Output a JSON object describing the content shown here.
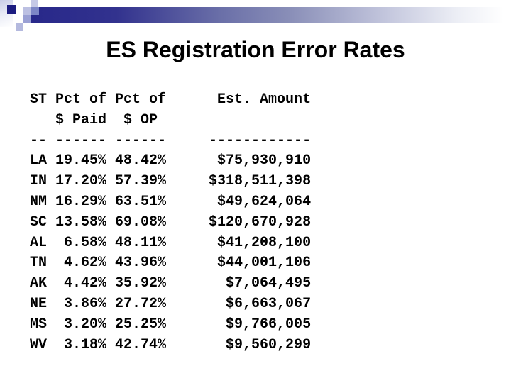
{
  "slide": {
    "title": "ES Registration Error Rates"
  },
  "table": {
    "headers": {
      "col_st": "ST",
      "col_pct_paid_line1": "Pct of",
      "col_pct_paid_line2": "$ Paid",
      "col_pct_op_line1": "Pct of",
      "col_pct_op_line2": "$ OP",
      "col_amount": "Est. Amount"
    },
    "separators": {
      "st": "--",
      "pct_paid": "------",
      "pct_op": "------",
      "amount": "------------"
    },
    "rows": [
      {
        "st": "LA",
        "pct_paid": "19.45%",
        "pct_op": "48.42%",
        "amount": "$75,930,910"
      },
      {
        "st": "IN",
        "pct_paid": "17.20%",
        "pct_op": "57.39%",
        "amount": "$318,511,398"
      },
      {
        "st": "NM",
        "pct_paid": "16.29%",
        "pct_op": "63.51%",
        "amount": "$49,624,064"
      },
      {
        "st": "SC",
        "pct_paid": "13.58%",
        "pct_op": "69.08%",
        "amount": "$120,670,928"
      },
      {
        "st": "AL",
        "pct_paid": "6.58%",
        "pct_op": "48.11%",
        "amount": "$41,208,100"
      },
      {
        "st": "TN",
        "pct_paid": "4.62%",
        "pct_op": "43.96%",
        "amount": "$44,001,106"
      },
      {
        "st": "AK",
        "pct_paid": "4.42%",
        "pct_op": "35.92%",
        "amount": "$7,064,495"
      },
      {
        "st": "NE",
        "pct_paid": "3.86%",
        "pct_op": "27.72%",
        "amount": "$6,663,067"
      },
      {
        "st": "MS",
        "pct_paid": "3.20%",
        "pct_op": "25.25%",
        "amount": "$9,766,005"
      },
      {
        "st": "WV",
        "pct_paid": "3.18%",
        "pct_op": "42.74%",
        "amount": "$9,560,299"
      }
    ]
  },
  "colors": {
    "title_text": "#000000",
    "table_text": "#000000",
    "accent_navy": "#28288a",
    "deco_navy_square": "#1c1c80",
    "deco_lavender": "#b4b9de"
  }
}
